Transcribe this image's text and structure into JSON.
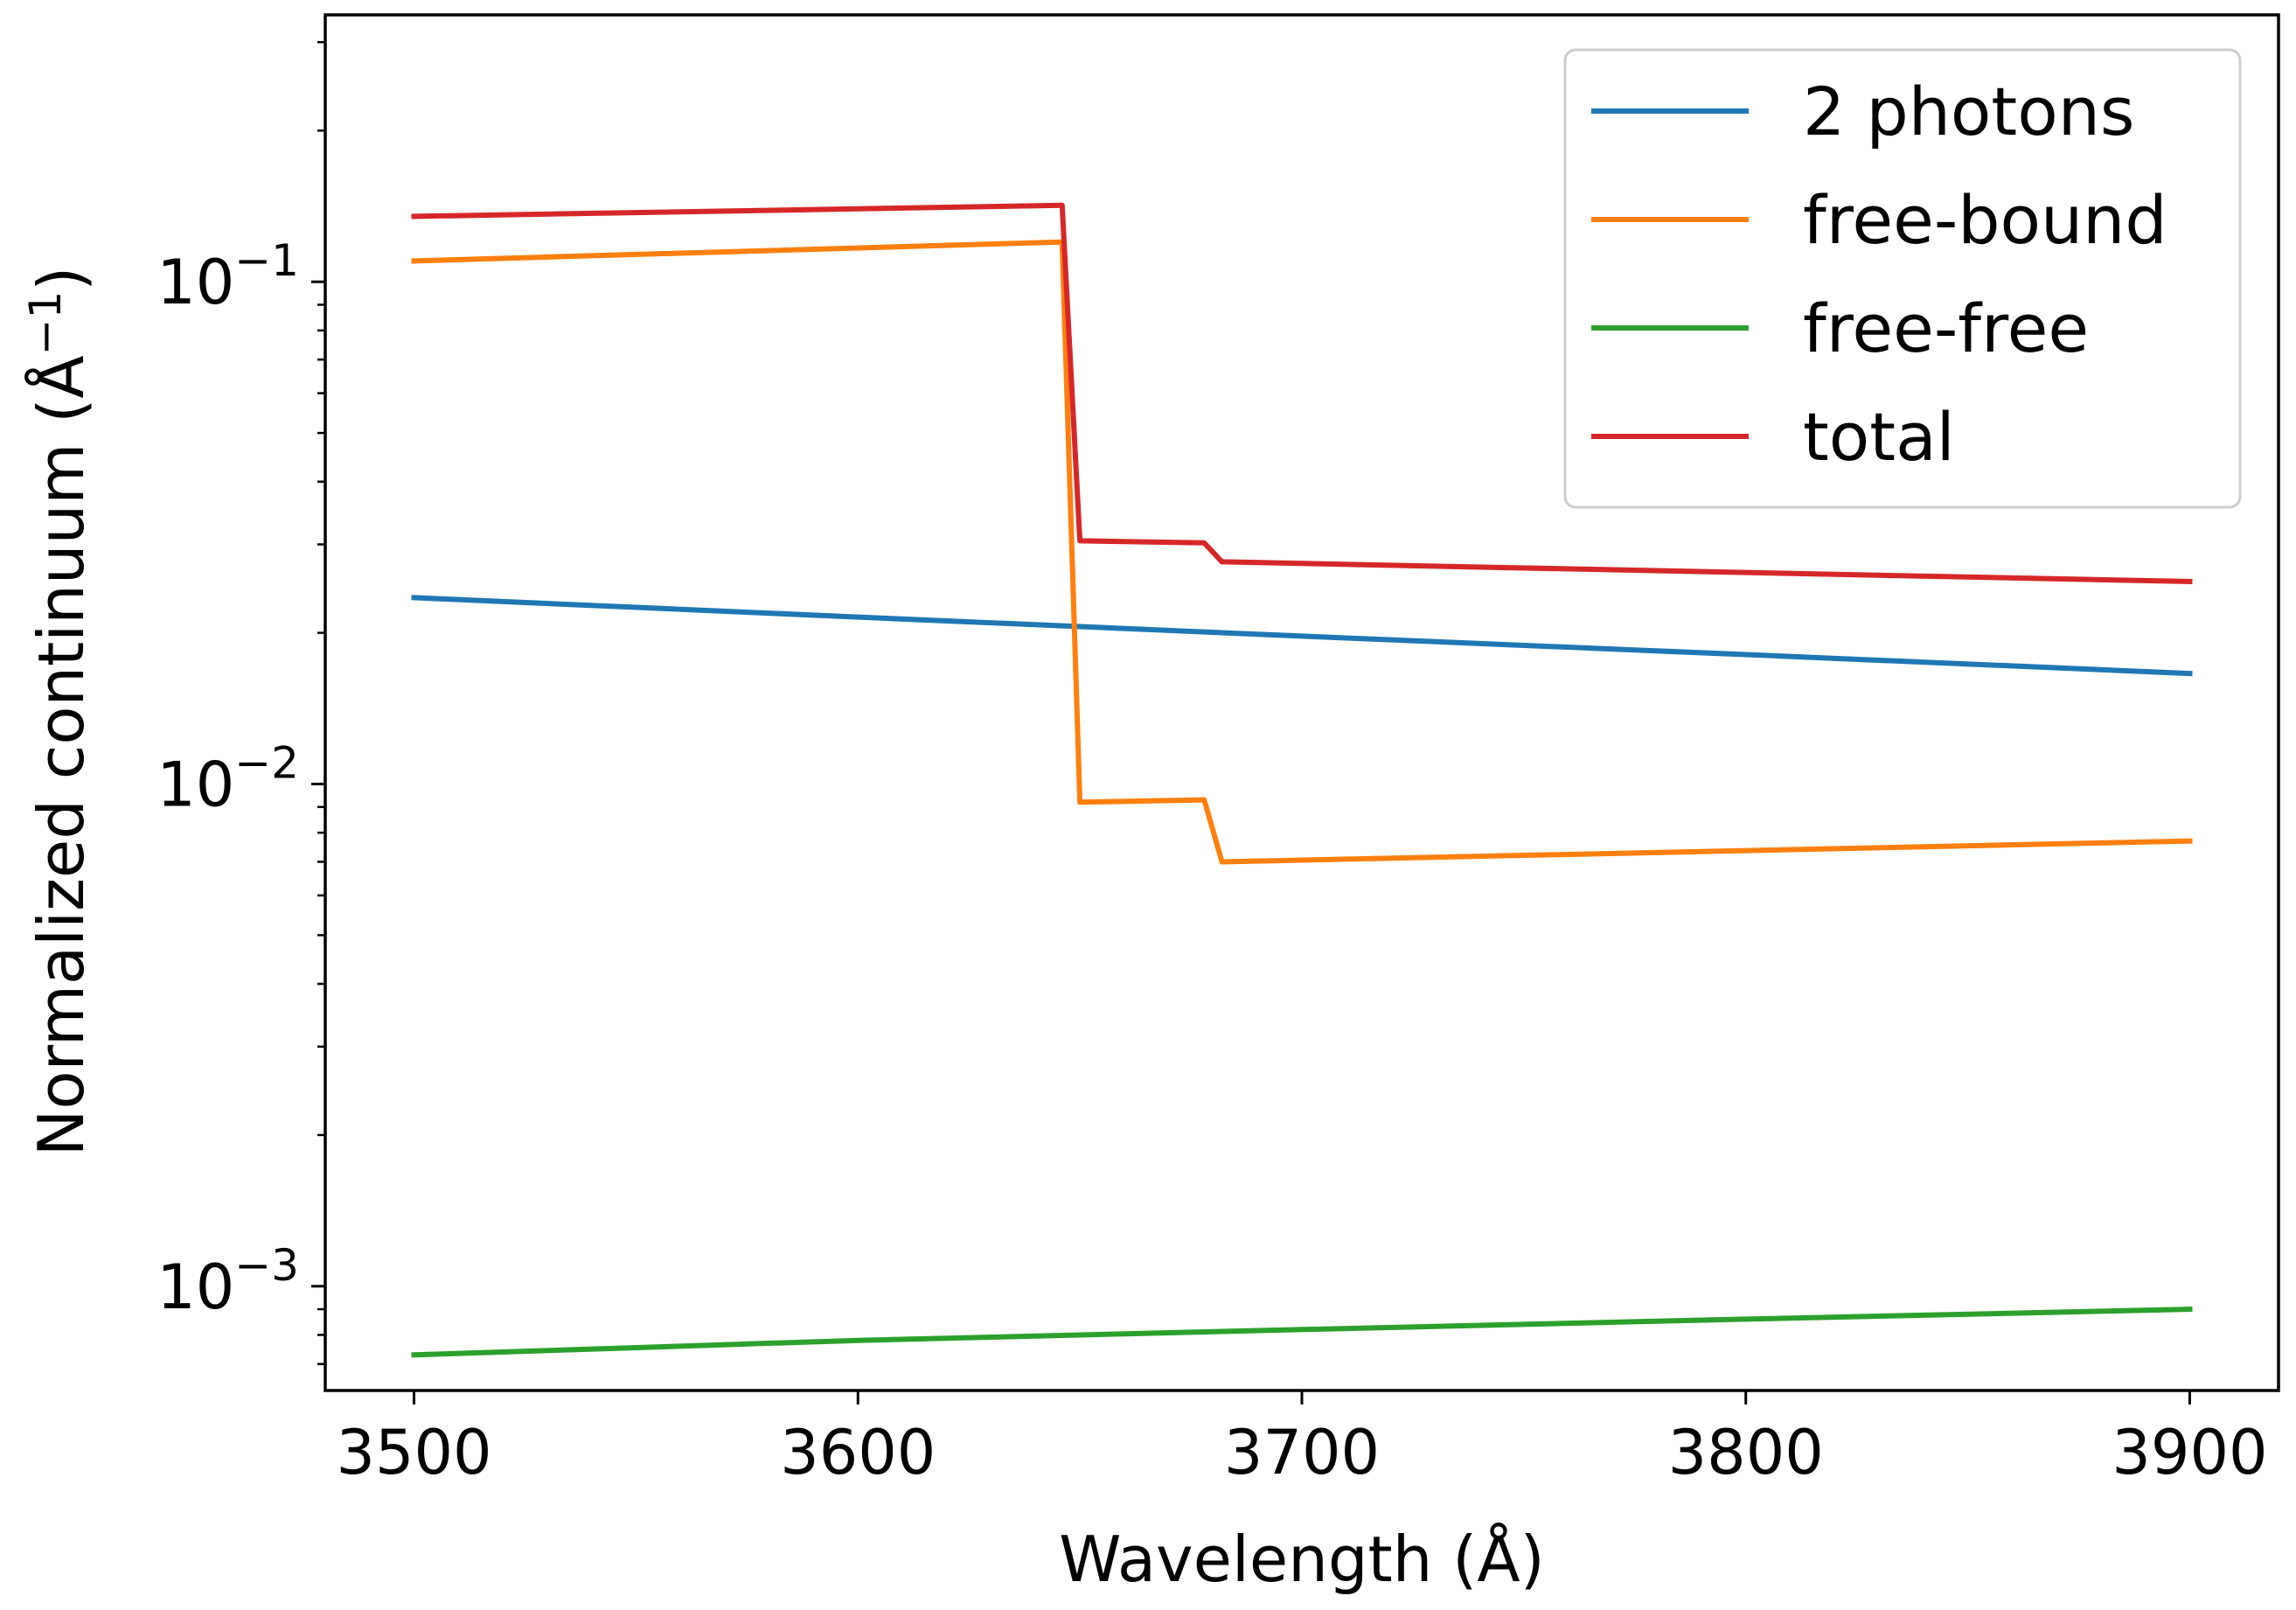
{
  "chart_data": {
    "type": "line",
    "title": "",
    "xlabel": "Wavelength (Å)",
    "ylabel": "Normalized continuum (Å",
    "ylabel_exponent": "−1",
    "ylabel_close": ")",
    "yscale": "log",
    "xlim": [
      3480,
      3920
    ],
    "ylim": [
      0.00062,
      0.34
    ],
    "legend_position": "top-right",
    "grid": false,
    "x_ticks": [
      3500,
      3600,
      3700,
      3800,
      3900
    ],
    "x_tick_labels": [
      "3500",
      "3600",
      "3700",
      "3800",
      "3900"
    ],
    "y_ticks": [
      {
        "value": 0.1,
        "base": "10",
        "exponent": "−1"
      },
      {
        "value": 0.01,
        "base": "10",
        "exponent": "−2"
      },
      {
        "value": 0.001,
        "base": "10",
        "exponent": "−3"
      }
    ],
    "y_minor_ticks": [
      0.002,
      0.003,
      0.004,
      0.005,
      0.006,
      0.007,
      0.008,
      0.009,
      0.02,
      0.03,
      0.04,
      0.05,
      0.06,
      0.07,
      0.08,
      0.09,
      0.2,
      0.3,
      0.0007,
      0.0008,
      0.0009
    ],
    "series": [
      {
        "name": "2 photons",
        "color": "#1f77b4",
        "x": [
          3500,
          3600,
          3700,
          3800,
          3900
        ],
        "y": [
          0.0235,
          0.0215,
          0.0197,
          0.0181,
          0.0166
        ]
      },
      {
        "name": "free-bound",
        "color": "#ff7f0e",
        "x": [
          3500,
          3646,
          3650,
          3678,
          3682,
          3900
        ],
        "y": [
          0.11,
          0.12,
          0.0092,
          0.0093,
          0.007,
          0.0077
        ]
      },
      {
        "name": "free-free",
        "color": "#2ca02c",
        "x": [
          3500,
          3600,
          3700,
          3800,
          3900
        ],
        "y": [
          0.00073,
          0.00078,
          0.00082,
          0.00086,
          0.0009
        ]
      },
      {
        "name": "total",
        "color": "#d62728",
        "x": [
          3500,
          3646,
          3650,
          3678,
          3682,
          3900
        ],
        "y": [
          0.135,
          0.142,
          0.0305,
          0.0302,
          0.0277,
          0.0253
        ]
      }
    ]
  }
}
